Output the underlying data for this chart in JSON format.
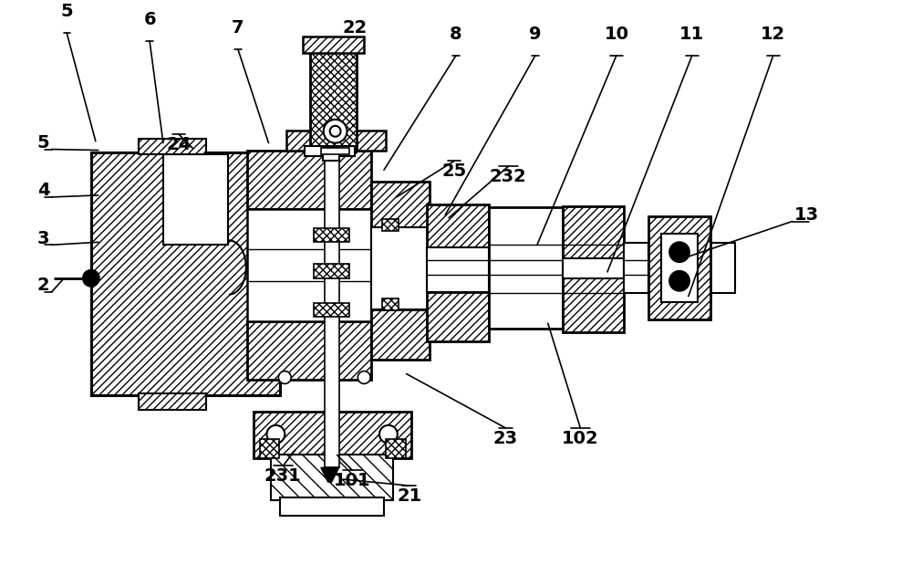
{
  "bg_color": "#ffffff",
  "lc": "#000000",
  "fig_width": 10.0,
  "fig_height": 6.19,
  "dpi": 100,
  "top_labels": [
    [
      "5",
      68,
      590,
      100,
      470
    ],
    [
      "6",
      160,
      581,
      175,
      468
    ],
    [
      "7",
      258,
      572,
      292,
      468
    ],
    [
      "22",
      388,
      572,
      362,
      510
    ],
    [
      "8",
      500,
      565,
      420,
      438
    ],
    [
      "9",
      588,
      565,
      488,
      388
    ],
    [
      "10",
      678,
      565,
      590,
      355
    ],
    [
      "11",
      762,
      565,
      668,
      325
    ],
    [
      "12",
      852,
      565,
      758,
      298
    ]
  ],
  "left_labels": [
    [
      "5",
      35,
      468,
      103,
      460
    ],
    [
      "4",
      35,
      415,
      103,
      410
    ],
    [
      "3",
      35,
      362,
      103,
      358
    ],
    [
      "2",
      35,
      310,
      65,
      318
    ]
  ],
  "right_labels": [
    [
      "13",
      875,
      388,
      752,
      340
    ]
  ],
  "bottom_labels": [
    [
      "24",
      192,
      478,
      208,
      462
    ],
    [
      "25",
      498,
      448,
      434,
      408
    ],
    [
      "232",
      558,
      442,
      492,
      385
    ],
    [
      "231",
      308,
      110,
      322,
      128
    ],
    [
      "101",
      385,
      105,
      368,
      122
    ],
    [
      "21",
      448,
      88,
      375,
      95
    ],
    [
      "23",
      555,
      152,
      445,
      212
    ],
    [
      "102",
      638,
      152,
      602,
      268
    ]
  ]
}
